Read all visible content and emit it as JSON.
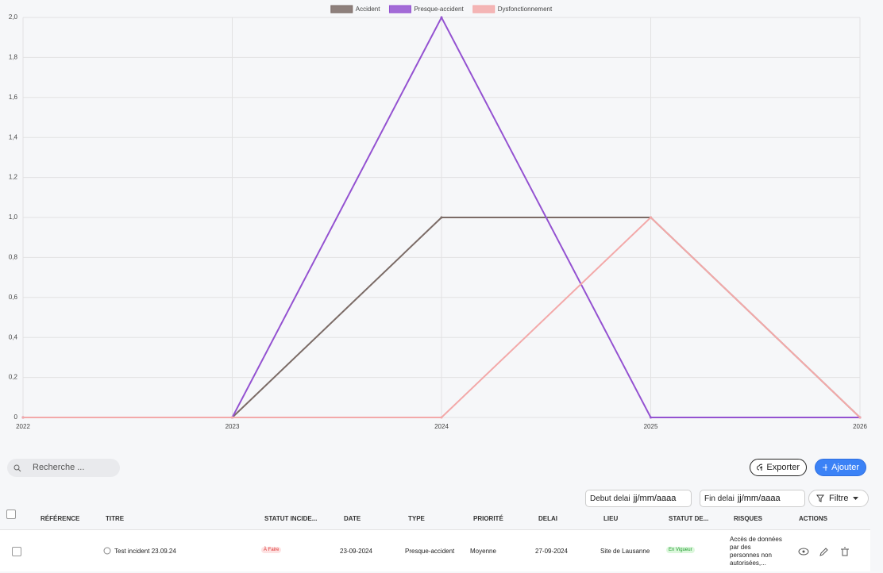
{
  "chart_data": {
    "type": "line",
    "x": [
      2022,
      2023,
      2024,
      2025,
      2026
    ],
    "xlim": [
      2022,
      2026
    ],
    "xticks": [
      2022,
      2023,
      2024,
      2025,
      2026
    ],
    "ylim": [
      0,
      2
    ],
    "yticks": [
      0,
      {
        "value": 0.2,
        "label": "0,2"
      },
      {
        "value": 0.4,
        "label": "0,4"
      },
      {
        "value": 0.6,
        "label": "0,6"
      },
      {
        "value": 0.8,
        "label": "0,8"
      },
      {
        "value": 1,
        "label": "1,0"
      },
      {
        "value": 1.2,
        "label": "1,2"
      },
      {
        "value": 1.4,
        "label": "1,4"
      },
      {
        "value": 1.6,
        "label": "1,6"
      },
      {
        "value": 1.8,
        "label": "1,8"
      },
      {
        "value": 2,
        "label": "2,0"
      }
    ],
    "grid": true,
    "legend": "top",
    "series": [
      {
        "name": "Accident",
        "color": "#7b6b66",
        "values": [
          0,
          0,
          1,
          1,
          0
        ]
      },
      {
        "name": "Presque-accident",
        "color": "#9452d1",
        "values": [
          0,
          0,
          2,
          0,
          0
        ]
      },
      {
        "name": "Dysfonctionnement",
        "color": "#f3a9a9",
        "values": [
          0,
          0,
          0,
          1,
          0
        ]
      }
    ]
  },
  "toolbar": {
    "search_placeholder": "Recherche ...",
    "export": "Exporter",
    "add": "Ajouter",
    "start_label": "Debut delai",
    "end_label": "Fin delai",
    "date_placeholder": "jj/mm/aaaa",
    "filter": "Filtre"
  },
  "table": {
    "headers": [
      "RÉFÉRENCE",
      "TITRE",
      "STATUT INCIDE...",
      "DATE",
      "TYPE",
      "PRIORITÉ",
      "DELAI",
      "LIEU",
      "STATUT DE...",
      "RISQUES",
      "ACTIONS"
    ],
    "rows": [
      {
        "title": "Test incident 23.09.24",
        "status": "À Faire",
        "date": "23-09-2024",
        "type": "Presque-accident",
        "priority": "Moyenne",
        "deadline": "27-09-2024",
        "place": "Site de Lausanne",
        "state": "En Vigueur",
        "risks": "Accès de données par des personnes non autorisées,..."
      }
    ]
  }
}
